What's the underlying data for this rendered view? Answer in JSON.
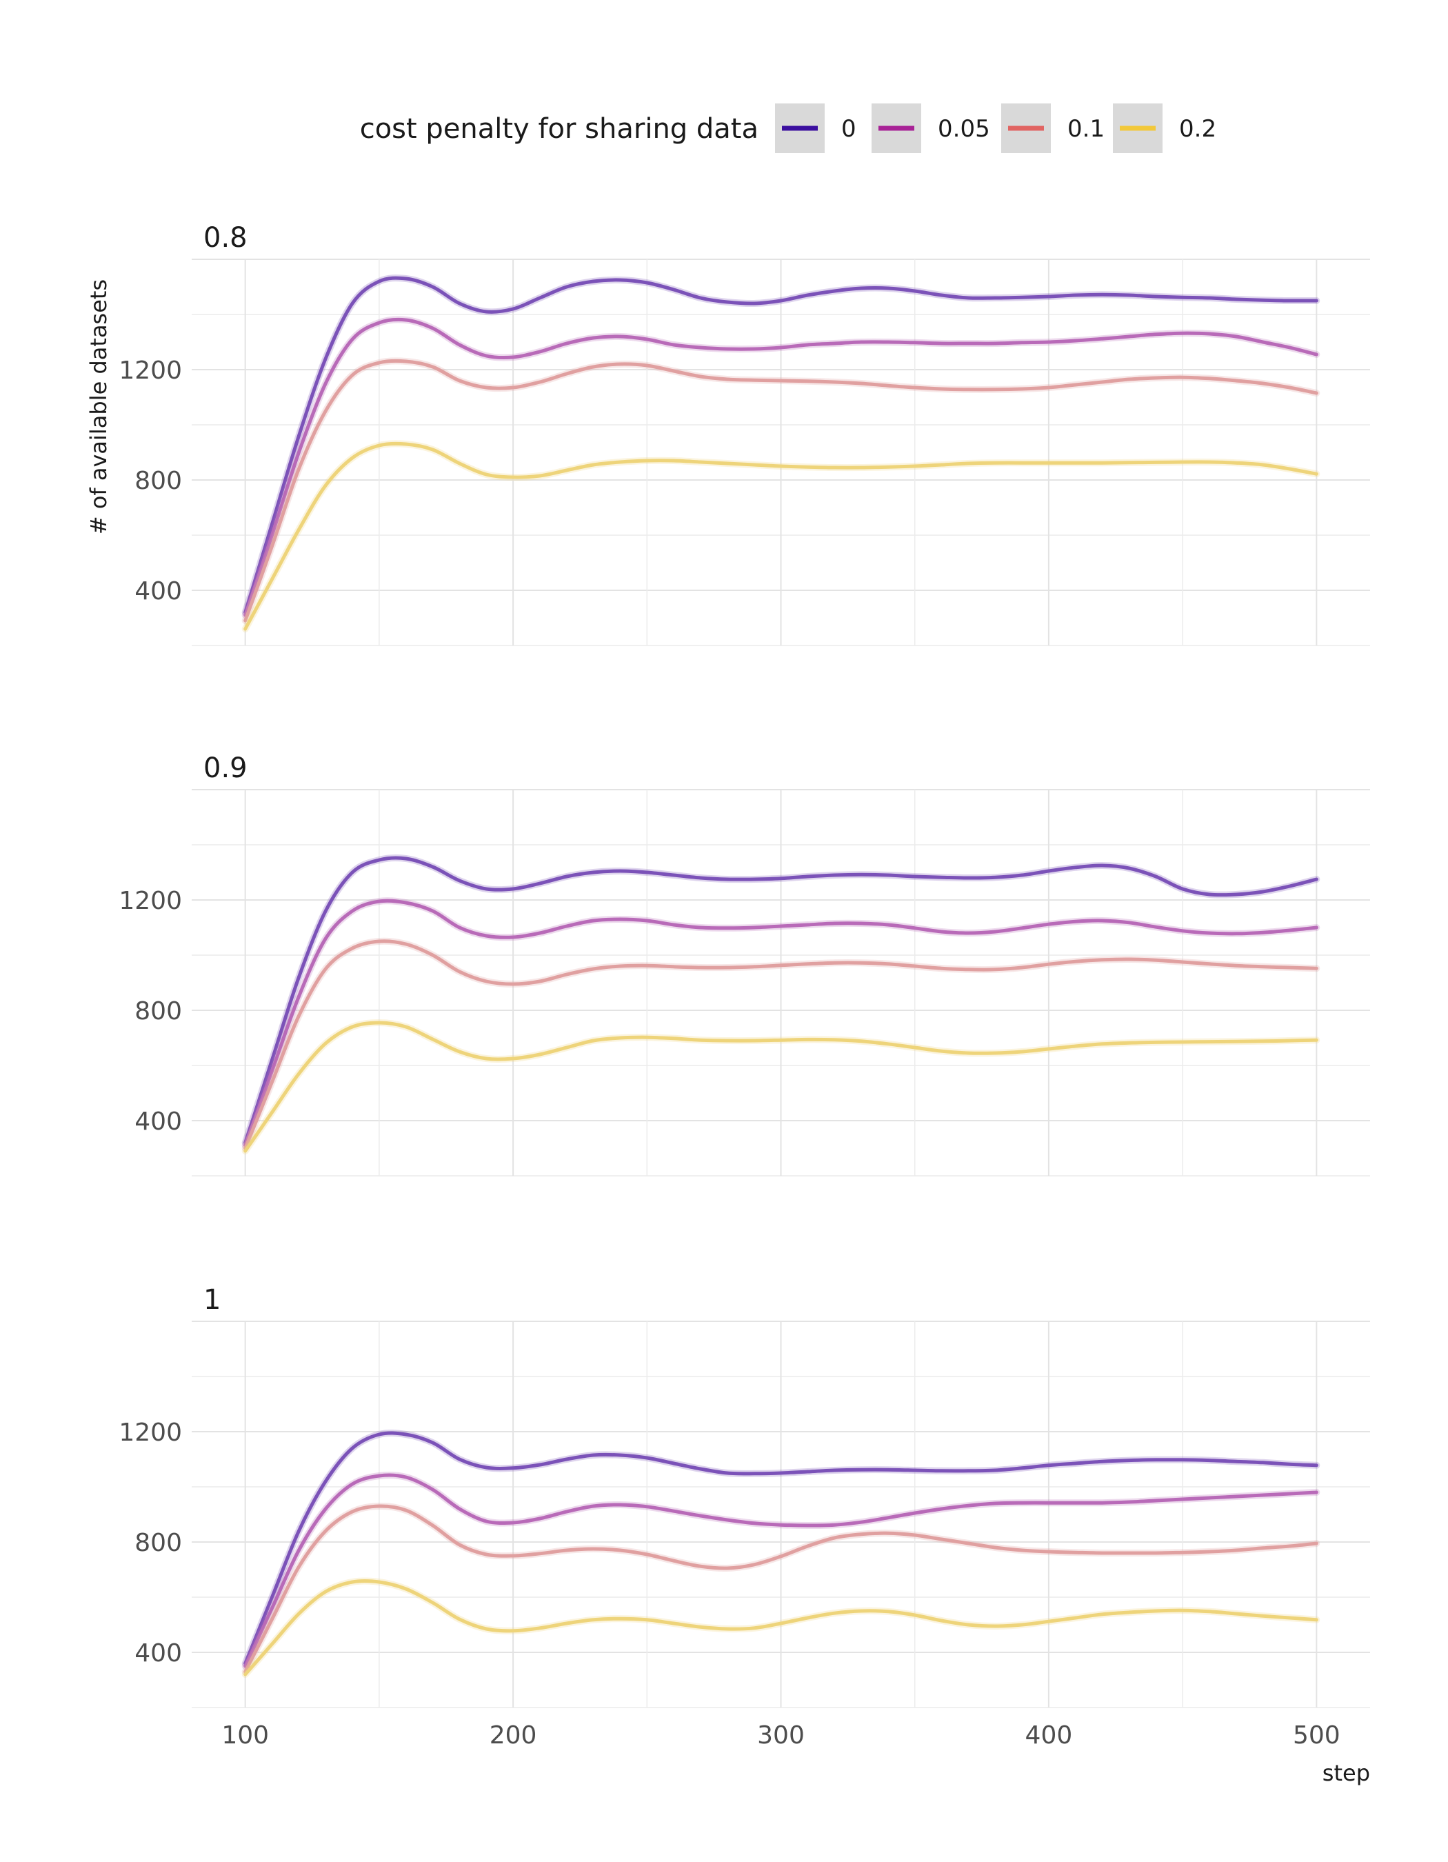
{
  "chart_data": {
    "type": "line",
    "xlabel": "step",
    "ylabel": "# of available datasets",
    "xlim": [
      80,
      520
    ],
    "ylim": [
      200,
      1600
    ],
    "x_ticks": [
      100,
      200,
      300,
      400,
      500
    ],
    "y_ticks": [
      400,
      800,
      1200
    ],
    "grid": true,
    "legend": {
      "title": "cost penalty for sharing data",
      "position": "top",
      "entries": [
        {
          "label": "0",
          "color": "#3b0f9f"
        },
        {
          "label": "0.05",
          "color": "#a82296"
        },
        {
          "label": "0.1",
          "color": "#e16462"
        },
        {
          "label": "0.2",
          "color": "#f2c83a"
        }
      ]
    },
    "x": [
      100,
      110,
      120,
      130,
      140,
      150,
      160,
      170,
      180,
      190,
      200,
      210,
      220,
      230,
      240,
      250,
      260,
      270,
      280,
      290,
      300,
      310,
      320,
      330,
      340,
      350,
      360,
      370,
      380,
      390,
      400,
      410,
      420,
      430,
      440,
      450,
      460,
      470,
      480,
      490,
      500
    ],
    "panels": [
      {
        "title": "0.8",
        "series": [
          {
            "name": "0",
            "color": "#7b52b8",
            "values": [
              320,
              640,
              960,
              1240,
              1440,
              1520,
              1530,
              1500,
              1440,
              1410,
              1420,
              1460,
              1500,
              1520,
              1525,
              1515,
              1490,
              1460,
              1445,
              1440,
              1450,
              1470,
              1485,
              1495,
              1495,
              1485,
              1470,
              1460,
              1460,
              1462,
              1465,
              1470,
              1472,
              1470,
              1465,
              1462,
              1460,
              1455,
              1452,
              1450,
              1450
            ]
          },
          {
            "name": "0.05",
            "color": "#b86ab8",
            "values": [
              310,
              600,
              900,
              1150,
              1310,
              1370,
              1380,
              1350,
              1290,
              1250,
              1245,
              1265,
              1295,
              1315,
              1320,
              1310,
              1290,
              1280,
              1275,
              1275,
              1280,
              1290,
              1295,
              1300,
              1300,
              1298,
              1295,
              1295,
              1295,
              1298,
              1300,
              1305,
              1312,
              1320,
              1328,
              1332,
              1330,
              1320,
              1300,
              1280,
              1255
            ]
          },
          {
            "name": "0.1",
            "color": "#e0a0a0",
            "values": [
              290,
              560,
              840,
              1050,
              1180,
              1225,
              1230,
              1210,
              1160,
              1135,
              1135,
              1155,
              1185,
              1210,
              1220,
              1215,
              1195,
              1175,
              1165,
              1162,
              1160,
              1158,
              1155,
              1150,
              1142,
              1135,
              1130,
              1128,
              1128,
              1130,
              1135,
              1145,
              1155,
              1165,
              1170,
              1172,
              1168,
              1160,
              1150,
              1135,
              1115
            ]
          },
          {
            "name": "0.2",
            "color": "#eed47a",
            "values": [
              260,
              440,
              620,
              780,
              880,
              925,
              930,
              910,
              860,
              820,
              810,
              815,
              835,
              855,
              865,
              870,
              870,
              865,
              860,
              855,
              850,
              847,
              845,
              845,
              847,
              850,
              855,
              860,
              862,
              862,
              862,
              862,
              862,
              863,
              864,
              865,
              865,
              862,
              855,
              840,
              822
            ]
          }
        ]
      },
      {
        "title": "0.9",
        "series": [
          {
            "name": "0",
            "color": "#7b52b8",
            "values": [
              320,
              620,
              920,
              1160,
              1300,
              1345,
              1350,
              1320,
              1270,
              1240,
              1240,
              1260,
              1285,
              1300,
              1305,
              1300,
              1290,
              1280,
              1275,
              1275,
              1278,
              1285,
              1290,
              1292,
              1290,
              1285,
              1282,
              1280,
              1282,
              1290,
              1305,
              1318,
              1325,
              1315,
              1285,
              1240,
              1220,
              1220,
              1230,
              1250,
              1275
            ]
          },
          {
            "name": "0.05",
            "color": "#b86ab8",
            "values": [
              310,
              580,
              850,
              1060,
              1160,
              1195,
              1190,
              1160,
              1100,
              1070,
              1065,
              1080,
              1105,
              1125,
              1130,
              1125,
              1110,
              1100,
              1098,
              1100,
              1105,
              1110,
              1115,
              1115,
              1110,
              1098,
              1085,
              1080,
              1085,
              1098,
              1112,
              1122,
              1125,
              1118,
              1102,
              1088,
              1080,
              1078,
              1082,
              1090,
              1100
            ]
          },
          {
            "name": "0.1",
            "color": "#e0a0a0",
            "values": [
              300,
              540,
              780,
              950,
              1025,
              1050,
              1040,
              1000,
              940,
              905,
              895,
              905,
              930,
              950,
              960,
              962,
              958,
              955,
              955,
              958,
              963,
              968,
              972,
              972,
              968,
              960,
              952,
              948,
              948,
              955,
              967,
              977,
              983,
              985,
              982,
              975,
              968,
              962,
              958,
              955,
              952
            ]
          },
          {
            "name": "0.2",
            "color": "#eed47a",
            "values": [
              290,
              430,
              570,
              680,
              740,
              755,
              740,
              695,
              650,
              625,
              625,
              640,
              665,
              690,
              700,
              702,
              698,
              692,
              690,
              690,
              692,
              694,
              693,
              688,
              678,
              665,
              652,
              645,
              645,
              650,
              660,
              670,
              678,
              682,
              684,
              685,
              686,
              687,
              688,
              690,
              692
            ]
          }
        ]
      },
      {
        "title": "1",
        "series": [
          {
            "name": "0",
            "color": "#7b52b8",
            "values": [
              360,
              600,
              840,
              1020,
              1140,
              1190,
              1190,
              1160,
              1100,
              1070,
              1068,
              1080,
              1100,
              1115,
              1115,
              1105,
              1085,
              1065,
              1050,
              1048,
              1050,
              1055,
              1060,
              1062,
              1062,
              1060,
              1058,
              1058,
              1060,
              1068,
              1078,
              1085,
              1092,
              1096,
              1098,
              1098,
              1096,
              1092,
              1088,
              1082,
              1078
            ]
          },
          {
            "name": "0.05",
            "color": "#b86ab8",
            "values": [
              350,
              560,
              770,
              920,
              1010,
              1040,
              1035,
              990,
              920,
              875,
              870,
              885,
              910,
              930,
              935,
              928,
              912,
              895,
              880,
              868,
              862,
              860,
              862,
              872,
              888,
              905,
              920,
              932,
              940,
              942,
              942,
              942,
              942,
              945,
              950,
              955,
              960,
              965,
              970,
              975,
              980
            ]
          },
          {
            "name": "0.1",
            "color": "#e0a0a0",
            "values": [
              330,
              520,
              710,
              840,
              910,
              930,
              915,
              860,
              790,
              755,
              750,
              758,
              770,
              775,
              770,
              755,
              732,
              712,
              705,
              718,
              748,
              785,
              815,
              828,
              832,
              825,
              810,
              795,
              780,
              770,
              765,
              762,
              760,
              760,
              760,
              762,
              765,
              770,
              778,
              785,
              795
            ]
          },
          {
            "name": "0.2",
            "color": "#eed47a",
            "values": [
              320,
              430,
              540,
              620,
              655,
              655,
              630,
              580,
              520,
              485,
              478,
              488,
              505,
              518,
              522,
              518,
              505,
              492,
              485,
              488,
              505,
              525,
              542,
              550,
              548,
              535,
              515,
              500,
              495,
              500,
              512,
              525,
              538,
              545,
              550,
              552,
              548,
              540,
              532,
              525,
              518
            ]
          }
        ]
      }
    ]
  }
}
